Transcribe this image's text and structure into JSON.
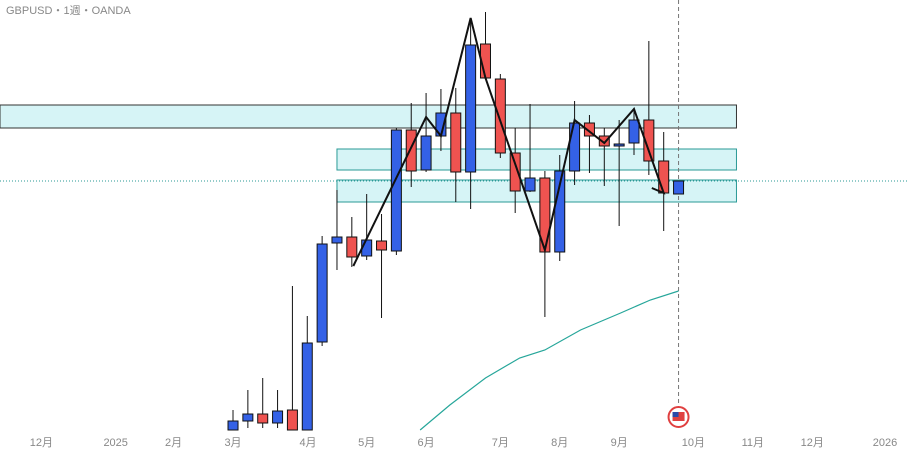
{
  "chart_data": {
    "type": "candlestick",
    "title": "GBPUSD・1週・OANDA",
    "x": [
      0,
      1,
      2,
      3,
      4,
      5,
      6,
      7,
      8,
      9,
      10,
      11,
      12,
      13,
      14,
      15,
      16,
      17,
      18,
      19,
      20,
      21,
      22,
      23,
      24,
      25,
      26,
      27,
      28,
      29,
      30
    ],
    "open": [
      0,
      9,
      16,
      7,
      20,
      0,
      88,
      187,
      193,
      174,
      189,
      179,
      300,
      260,
      294,
      317,
      258,
      386,
      351,
      277,
      239,
      252,
      178,
      259,
      307,
      294,
      284,
      287,
      310,
      269,
      236
    ],
    "high": [
      20,
      40,
      52,
      40,
      144,
      114,
      194,
      240,
      213,
      236,
      216,
      302,
      327,
      337,
      341,
      342,
      412,
      418,
      356,
      302,
      326,
      259,
      275,
      329,
      315,
      302,
      310,
      321,
      389,
      298,
      249
    ],
    "low": [
      0,
      2,
      2,
      2,
      0,
      0,
      84,
      160,
      163,
      170,
      112,
      175,
      243,
      258,
      279,
      228,
      221,
      350,
      272,
      217,
      238,
      113,
      169,
      245,
      257,
      244,
      204,
      275,
      255,
      199,
      236
    ],
    "close": [
      9,
      16,
      7,
      19,
      0,
      87,
      186,
      193,
      173,
      190,
      180,
      300,
      259,
      294,
      317,
      258,
      385,
      352,
      277,
      239,
      252,
      178,
      259,
      307,
      294,
      284,
      286,
      310,
      269,
      237,
      249
    ],
    "up_color": "#3461e6",
    "down_color": "#ef5350",
    "xlim": [
      -15.69,
      45.45
    ],
    "ylim": [
      0,
      430
    ],
    "xticks": [
      {
        "value": -12.9,
        "label": "12月"
      },
      {
        "value": -7.9,
        "label": "2025"
      },
      {
        "value": -4.0,
        "label": "2月"
      },
      {
        "value": 0,
        "label": "3月"
      },
      {
        "value": 5.05,
        "label": "4月"
      },
      {
        "value": 9.0,
        "label": "5月"
      },
      {
        "value": 13.0,
        "label": "6月"
      },
      {
        "value": 18.0,
        "label": "7月"
      },
      {
        "value": 22.0,
        "label": "8月"
      },
      {
        "value": 26.0,
        "label": "9月"
      },
      {
        "value": 31.0,
        "label": "10月"
      },
      {
        "value": 35.0,
        "label": "11月"
      },
      {
        "value": 39.0,
        "label": "12月"
      },
      {
        "value": 43.9,
        "label": "2026"
      }
    ],
    "zones": [
      {
        "x0": -15.69,
        "x1": 33.9,
        "y0": 302,
        "y1": 325
      },
      {
        "x0": 7.0,
        "x1": 33.9,
        "y0": 260,
        "y1": 281
      },
      {
        "x0": 7.0,
        "x1": 33.9,
        "y0": 228,
        "y1": 250
      }
    ],
    "zone_color": "#d6f4f6",
    "price_line": 249,
    "current_x": 30,
    "moving_average": {
      "color": "#26a69a",
      "x": [
        12.6,
        14.6,
        17.0,
        19.3,
        21.0,
        23.4,
        26.1,
        28.1,
        30.0
      ],
      "values": [
        0,
        25,
        52,
        72,
        80,
        100,
        117,
        130,
        139
      ]
    },
    "zigzag": {
      "color": "#111111",
      "x": [
        8.1,
        13.0,
        14.0,
        16.0,
        17.0,
        21.0,
        23.0,
        25.0,
        27.0,
        29.0,
        28.2
      ],
      "values": [
        164,
        313,
        294,
        412,
        352,
        180,
        310,
        287,
        321,
        237,
        242
      ]
    }
  }
}
